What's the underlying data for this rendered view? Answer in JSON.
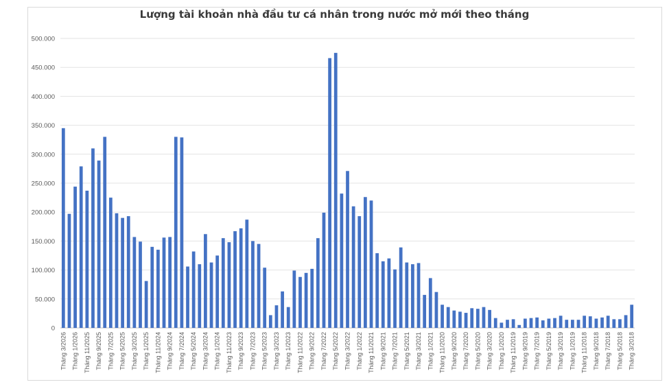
{
  "chart_data": {
    "type": "bar",
    "title": "Lượng tài khoản nhà đầu tư cá nhân trong nước mở mới theo tháng",
    "xlabel": "",
    "ylabel": "",
    "ylim": [
      0,
      500000
    ],
    "yticks": [
      "0",
      "50.000",
      "100.000",
      "150.000",
      "200.000",
      "250.000",
      "300.000",
      "350.000",
      "400.000",
      "450.000",
      "500.000"
    ],
    "grid": true,
    "bar_color": "#4472c4",
    "categories": [
      "Tháng 3/2026",
      "Tháng 2/2026",
      "Tháng 1/2026",
      "Tháng 12/2025",
      "Tháng 11/2025",
      "Tháng 10/2025",
      "Tháng 9/2025",
      "Tháng 8/2025",
      "Tháng 7/2025",
      "Tháng 6/2025",
      "Tháng 5/2025",
      "Tháng 4/2025",
      "Tháng 3/2025",
      "Tháng 2/2025",
      "Tháng 1/2025",
      "Tháng 12/2024",
      "Tháng 11/2024",
      "Tháng 10/2024",
      "Tháng 9/2024",
      "Tháng 8/2024",
      "Tháng 7/2024",
      "Tháng 6/2024",
      "Tháng 5/2024",
      "Tháng 4/2024",
      "Tháng 3/2024",
      "Tháng 2/2024",
      "Tháng 1/2024",
      "Tháng 12/2023",
      "Tháng 11/2023",
      "Tháng 10/2023",
      "Tháng 9/2023",
      "Tháng 8/2023",
      "Tháng 7/2023",
      "Tháng 6/2023",
      "Tháng 5/2023",
      "Tháng 4/2023",
      "Tháng 3/2023",
      "Tháng 2/2023",
      "Tháng 1/2023",
      "Tháng 12/2022",
      "Tháng 11/2022",
      "Tháng 10/2022",
      "Tháng 9/2022",
      "Tháng 8/2022",
      "Tháng 7/2022",
      "Tháng 6/2022",
      "Tháng 5/2022",
      "Tháng 4/2022",
      "Tháng 3/2022",
      "Tháng 2/2022",
      "Tháng 1/2022",
      "Tháng 12/2021",
      "Tháng 11/2021",
      "Tháng 10/2021",
      "Tháng 9/2021",
      "Tháng 8/2021",
      "Tháng 7/2021",
      "Tháng 6/2021",
      "Tháng 5/2021",
      "Tháng 4/2021",
      "Tháng 3/2021",
      "Tháng 2/2021",
      "Tháng 1/2021",
      "Tháng 12/2020",
      "Tháng 11/2020",
      "Tháng 10/2020",
      "Tháng 9/2020",
      "Tháng 8/2020",
      "Tháng 7/2020",
      "Tháng 6/2020",
      "Tháng 5/2020",
      "Tháng 4/2020",
      "Tháng 3/2020",
      "Tháng 2/2020",
      "Tháng 1/2020",
      "Tháng 12/2019",
      "Tháng 11/2019",
      "Tháng 10/2019",
      "Tháng 9/2019",
      "Tháng 8/2019",
      "Tháng 7/2019",
      "Tháng 6/2019",
      "Tháng 5/2019",
      "Tháng 4/2019",
      "Tháng 3/2019",
      "Tháng 2/2019",
      "Tháng 1/2019",
      "Tháng 12/2018",
      "Tháng 11/2018",
      "Tháng 10/2018",
      "Tháng 9/2018",
      "Tháng 8/2018",
      "Tháng 7/2018",
      "Tháng 6/2018",
      "Tháng 5/2018",
      "Tháng 4/2018",
      "Tháng 3/2018"
    ],
    "values": [
      345000,
      197000,
      244000,
      279000,
      237000,
      310000,
      289000,
      330000,
      225000,
      198000,
      190000,
      193000,
      157000,
      149000,
      81000,
      140000,
      135000,
      156000,
      157000,
      330000,
      329000,
      106000,
      132000,
      110000,
      162000,
      113000,
      125000,
      155000,
      148000,
      167000,
      172000,
      187000,
      150000,
      145000,
      104000,
      22000,
      39000,
      63000,
      36000,
      99000,
      88000,
      95000,
      102000,
      155000,
      199000,
      466000,
      475000,
      232000,
      271000,
      210000,
      193000,
      226000,
      220000,
      129000,
      115000,
      120000,
      101000,
      139000,
      113000,
      110000,
      112000,
      57000,
      86000,
      62000,
      40000,
      36000,
      30000,
      28000,
      26000,
      34000,
      33000,
      36000,
      31000,
      17000,
      9000,
      14000,
      15000,
      5000,
      16000,
      17000,
      18000,
      13000,
      16000,
      17000,
      21000,
      14000,
      14000,
      14000,
      21000,
      20000,
      16000,
      18000,
      21000,
      15000,
      15000,
      22000,
      40000
    ]
  }
}
